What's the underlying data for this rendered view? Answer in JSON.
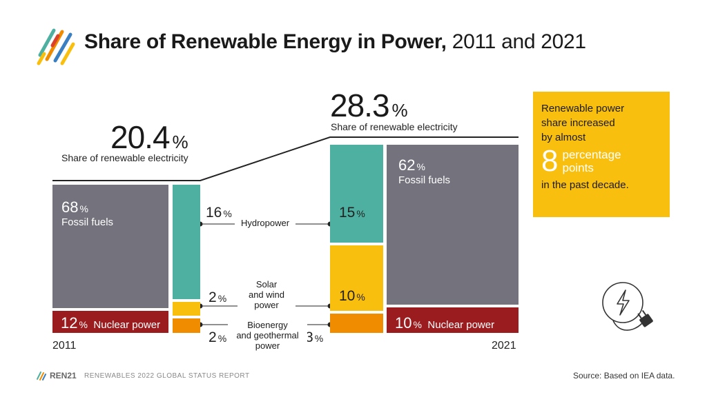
{
  "title": {
    "bold": "Share of Renewable Energy in Power,",
    "rest": "2011 and 2021"
  },
  "colors": {
    "fossil": "#73727d",
    "nuclear": "#9b1c1f",
    "hydro": "#4db0a0",
    "solar_wind": "#f9bf0e",
    "bio_geo": "#f08c00",
    "callout": "#f9bf0e"
  },
  "chart_data": {
    "type": "bar",
    "title": "Share of Renewable Energy in Power, 2011 and 2021",
    "categories": [
      "2011",
      "2021"
    ],
    "renewable_share": {
      "2011": {
        "value": "20.4",
        "unit": "%",
        "label": "Share of renewable electricity"
      },
      "2021": {
        "value": "28.3",
        "unit": "%",
        "label": "Share of renewable electricity"
      }
    },
    "series": [
      {
        "name": "Fossil fuels",
        "values": [
          68,
          62
        ]
      },
      {
        "name": "Nuclear power",
        "values": [
          12,
          10
        ]
      },
      {
        "name": "Hydropower",
        "values": [
          16,
          15
        ]
      },
      {
        "name": "Solar and wind power",
        "values": [
          2,
          10
        ]
      },
      {
        "name": "Bioenergy and geothermal power",
        "values": [
          2,
          3
        ]
      }
    ],
    "labels": {
      "fossil": "Fossil fuels",
      "nuclear": "Nuclear power",
      "hydro": "Hydropower",
      "solar": "Solar\nand wind\npower",
      "bio": "Bioenergy\nand geothermal\npower",
      "pct": "%"
    }
  },
  "callout": {
    "line1": "Renewable power",
    "line2": "share increased",
    "line3": "by almost",
    "number": "8",
    "unit1": "percentage",
    "unit2": "points",
    "line4": "in the past decade."
  },
  "footer": {
    "brand": "REN21",
    "report": "RENEWABLES 2022 GLOBAL STATUS REPORT",
    "source": "Source: Based on IEA data."
  },
  "icons": {
    "logo": "ren21-stripes-logo",
    "power": "power-plug-icon"
  }
}
